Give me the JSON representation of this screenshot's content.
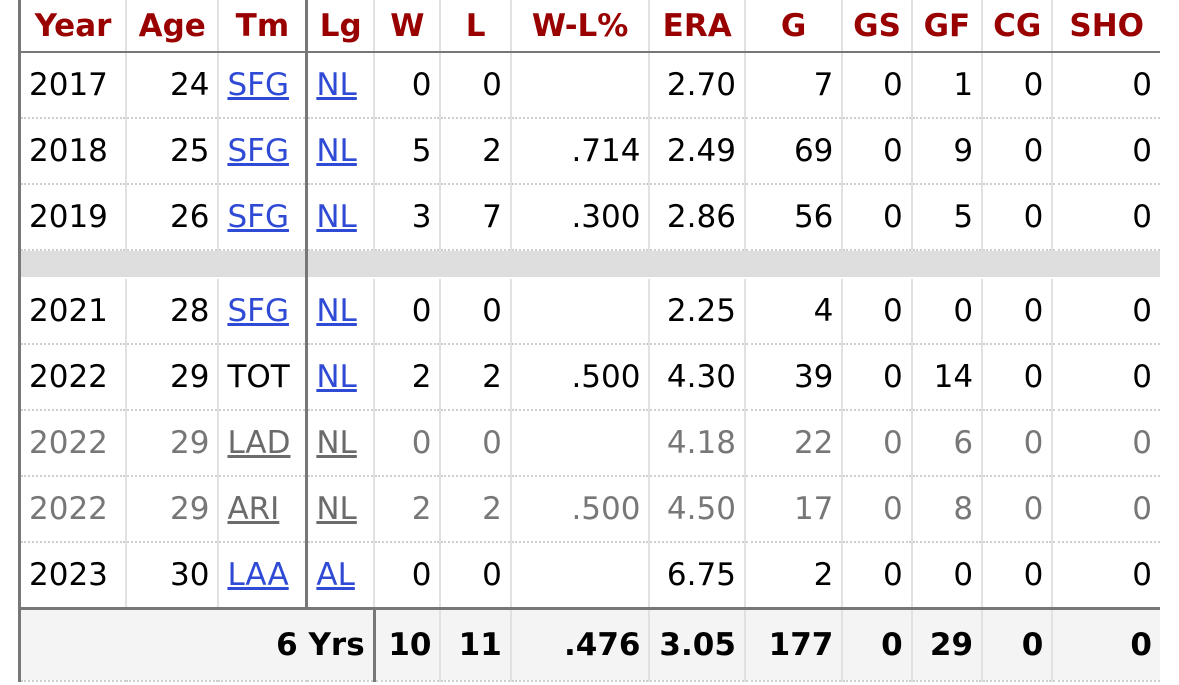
{
  "headers": [
    "Year",
    "Age",
    "Tm",
    "Lg",
    "W",
    "L",
    "W-L%",
    "ERA",
    "G",
    "GS",
    "GF",
    "CG",
    "SHO"
  ],
  "rows": [
    {
      "year": "2017",
      "age": "24",
      "tm": "SFG",
      "lg": "NL",
      "w": "0",
      "l": "0",
      "wlpct": "",
      "era": "2.70",
      "g": "7",
      "gs": "0",
      "gf": "1",
      "cg": "0",
      "sho": "0"
    },
    {
      "year": "2018",
      "age": "25",
      "tm": "SFG",
      "lg": "NL",
      "w": "5",
      "l": "2",
      "wlpct": ".714",
      "era": "2.49",
      "g": "69",
      "gs": "0",
      "gf": "9",
      "cg": "0",
      "sho": "0"
    },
    {
      "year": "2019",
      "age": "26",
      "tm": "SFG",
      "lg": "NL",
      "w": "3",
      "l": "7",
      "wlpct": ".300",
      "era": "2.86",
      "g": "56",
      "gs": "0",
      "gf": "5",
      "cg": "0",
      "sho": "0"
    },
    {
      "year": "2021",
      "age": "28",
      "tm": "SFG",
      "lg": "NL",
      "w": "0",
      "l": "0",
      "wlpct": "",
      "era": "2.25",
      "g": "4",
      "gs": "0",
      "gf": "0",
      "cg": "0",
      "sho": "0"
    },
    {
      "year": "2022",
      "age": "29",
      "tm": "TOT",
      "lg": "NL",
      "w": "2",
      "l": "2",
      "wlpct": ".500",
      "era": "4.30",
      "g": "39",
      "gs": "0",
      "gf": "14",
      "cg": "0",
      "sho": "0"
    },
    {
      "year": "2022",
      "age": "29",
      "tm": "LAD",
      "lg": "NL",
      "w": "0",
      "l": "0",
      "wlpct": "",
      "era": "4.18",
      "g": "22",
      "gs": "0",
      "gf": "6",
      "cg": "0",
      "sho": "0"
    },
    {
      "year": "2022",
      "age": "29",
      "tm": "ARI",
      "lg": "NL",
      "w": "2",
      "l": "2",
      "wlpct": ".500",
      "era": "4.50",
      "g": "17",
      "gs": "0",
      "gf": "8",
      "cg": "0",
      "sho": "0"
    },
    {
      "year": "2023",
      "age": "30",
      "tm": "LAA",
      "lg": "AL",
      "w": "0",
      "l": "0",
      "wlpct": "",
      "era": "6.75",
      "g": "2",
      "gs": "0",
      "gf": "0",
      "cg": "0",
      "sho": "0"
    }
  ],
  "totals": {
    "label": "6 Yrs",
    "w": "10",
    "l": "11",
    "wlpct": ".476",
    "era": "3.05",
    "g": "177",
    "gs": "0",
    "gf": "29",
    "cg": "0",
    "sho": "0"
  },
  "colors": {
    "header_text": "#990000",
    "link": "#2f4ad4",
    "minor_text": "#777777",
    "gap_bar": "#dedede"
  }
}
